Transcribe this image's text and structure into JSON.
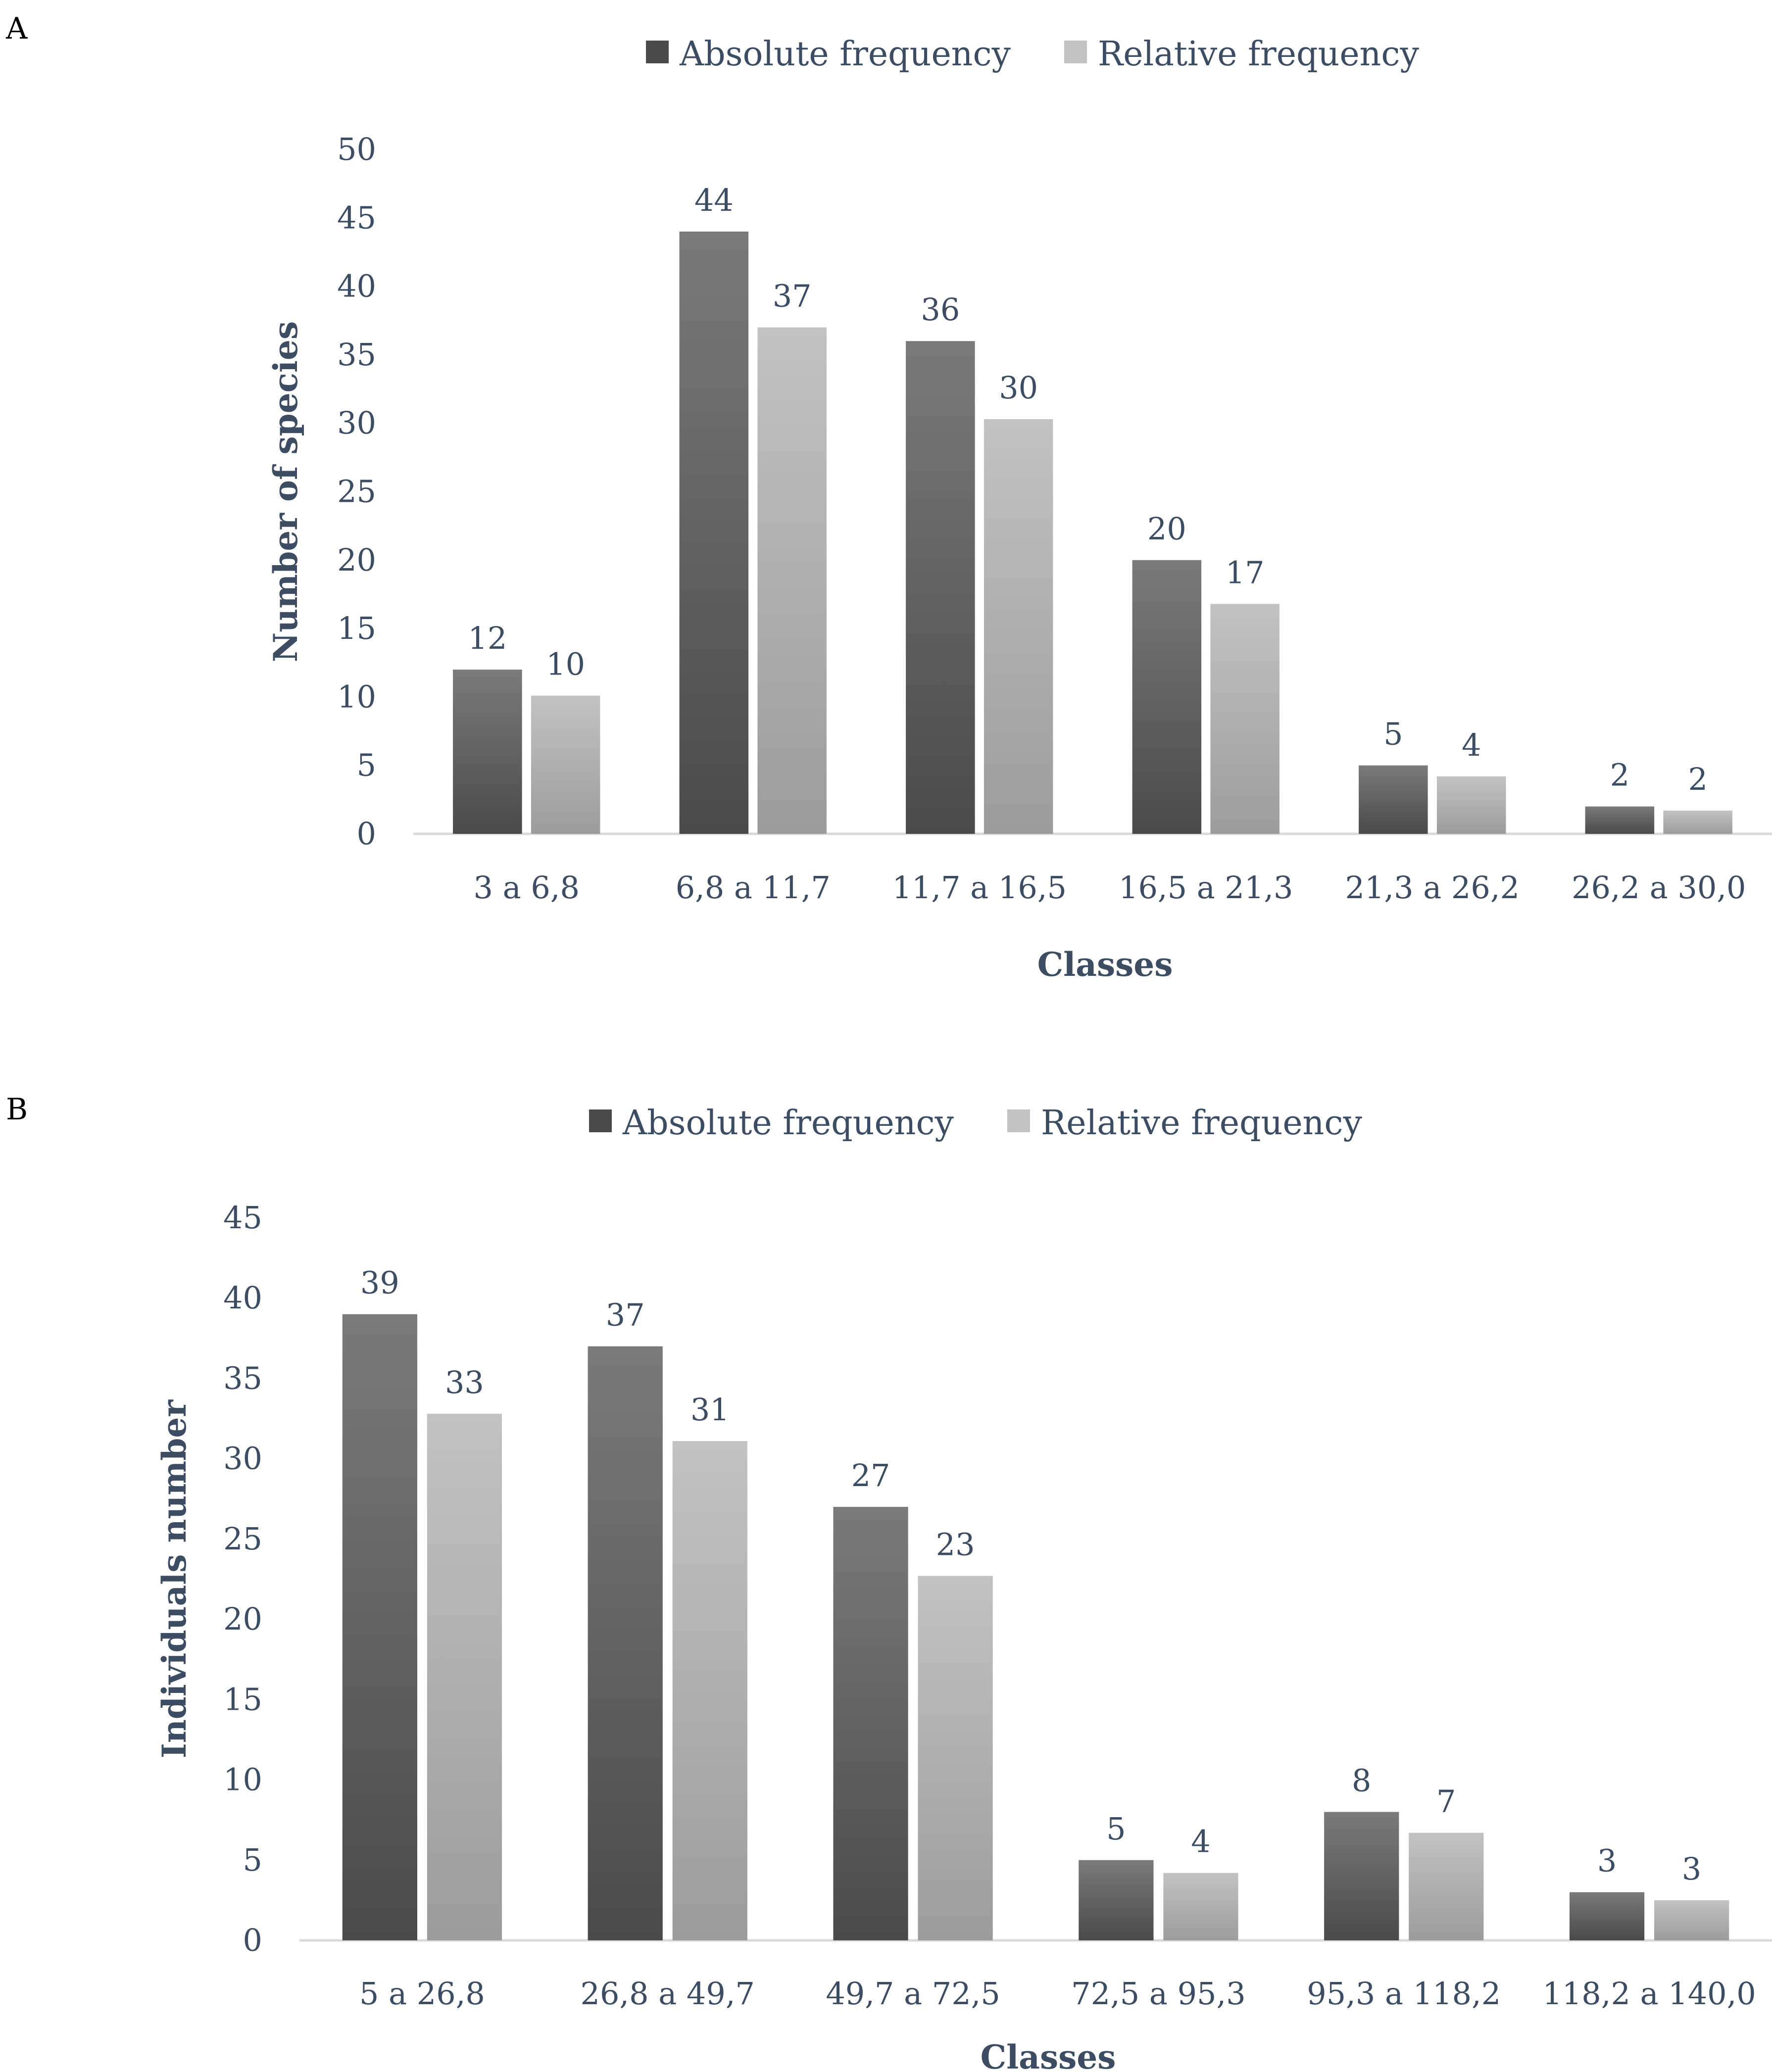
{
  "colors": {
    "absolute_top": "#7a7a7a",
    "absolute_bottom": "#4a4a4a",
    "relative_top": "#c2c2c2",
    "relative_bottom": "#9c9c9c",
    "axis_line": "#d9d9d9",
    "text": "#3c4d63"
  },
  "chart_data": [
    {
      "panel": "A",
      "type": "bar",
      "title": "",
      "xlabel": "Classes",
      "ylabel": "Number of species",
      "ylim": [
        0,
        50
      ],
      "yticks": [
        0,
        5,
        10,
        15,
        20,
        25,
        30,
        35,
        40,
        45,
        50
      ],
      "grid": false,
      "legend_position": "top",
      "categories": [
        "3 a 6,8",
        "6,8 a 11,7",
        "11,7 a 16,5",
        "16,5 a 21,3",
        "21,3 a 26,2",
        "26,2 a 30,0"
      ],
      "series": [
        {
          "name": "Absolute frequency",
          "values": [
            12,
            44,
            36,
            20,
            5,
            2
          ],
          "labels": [
            "12",
            "44",
            "36",
            "20",
            "5",
            "2"
          ]
        },
        {
          "name": "Relative frequency",
          "values": [
            10.1,
            37,
            30.3,
            16.8,
            4.2,
            1.7
          ],
          "labels": [
            "10",
            "37",
            "30",
            "17",
            "4",
            "2"
          ]
        }
      ]
    },
    {
      "panel": "B",
      "type": "bar",
      "title": "",
      "xlabel": "Classes",
      "ylabel": "Individuals number",
      "ylim": [
        0,
        45
      ],
      "yticks": [
        0,
        5,
        10,
        15,
        20,
        25,
        30,
        35,
        40,
        45
      ],
      "grid": false,
      "legend_position": "top",
      "categories": [
        "5 a 26,8",
        "26,8 a 49,7",
        "49,7 a 72,5",
        "72,5 a 95,3",
        "95,3 a 118,2",
        "118,2 a 140,0"
      ],
      "series": [
        {
          "name": "Absolute frequency",
          "values": [
            39,
            37,
            27,
            5,
            8,
            3
          ],
          "labels": [
            "39",
            "37",
            "27",
            "5",
            "8",
            "3"
          ]
        },
        {
          "name": "Relative frequency",
          "values": [
            32.8,
            31.1,
            22.7,
            4.2,
            6.7,
            2.5
          ],
          "labels": [
            "33",
            "31",
            "23",
            "4",
            "7",
            "3"
          ]
        }
      ]
    }
  ]
}
